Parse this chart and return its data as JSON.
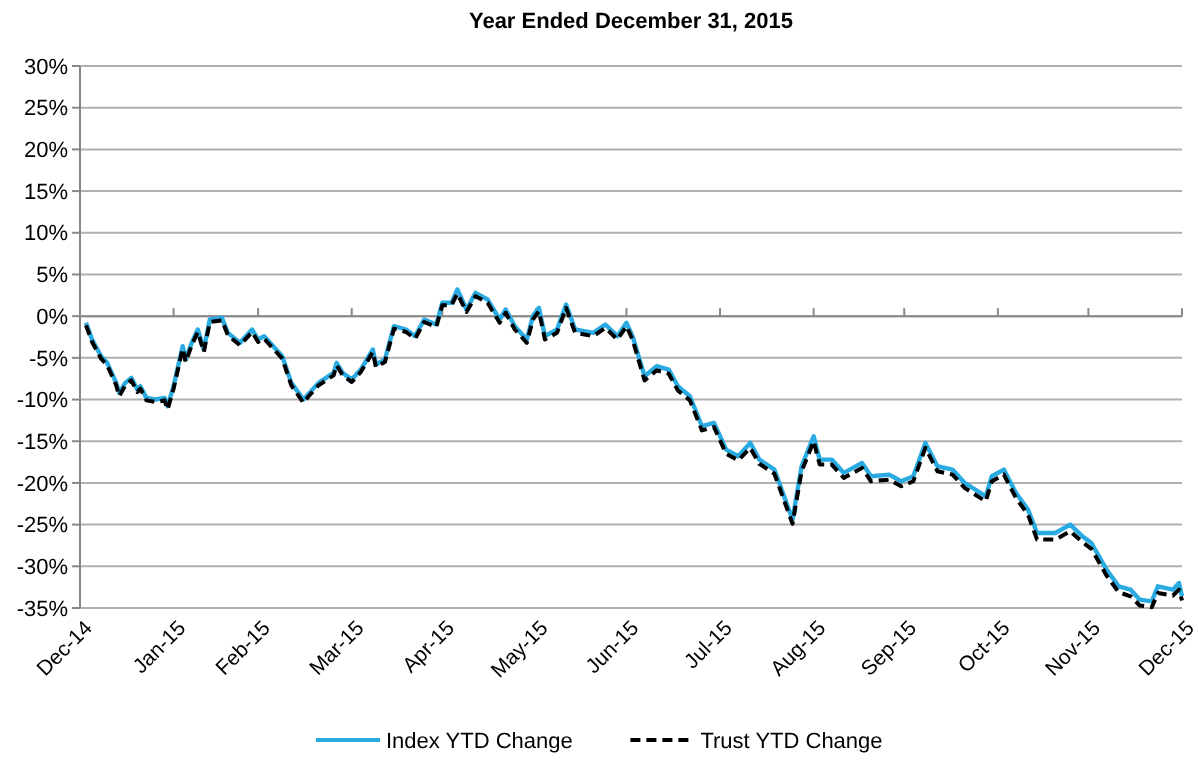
{
  "chart_data": {
    "type": "line",
    "title": "Year Ended December 31, 2015",
    "x": [
      "2015-01-02",
      "2015-01-04",
      "2015-01-07",
      "2015-01-09",
      "2015-01-12",
      "2015-01-13",
      "2015-01-15",
      "2015-01-17",
      "2015-01-19",
      "2015-01-20",
      "2015-01-22",
      "2015-01-25",
      "2015-01-28",
      "2015-01-29",
      "2015-01-31",
      "2015-02-01",
      "2015-02-03",
      "2015-02-04",
      "2015-02-06",
      "2015-02-08",
      "2015-02-10",
      "2015-02-12",
      "2015-02-16",
      "2015-02-18",
      "2015-02-22",
      "2015-02-26",
      "2015-02-28",
      "2015-03-02",
      "2015-03-05",
      "2015-03-08",
      "2015-03-11",
      "2015-03-15",
      "2015-03-17",
      "2015-03-20",
      "2015-03-25",
      "2015-03-26",
      "2015-03-28",
      "2015-03-31",
      "2015-04-03",
      "2015-04-07",
      "2015-04-08",
      "2015-04-11",
      "2015-04-14",
      "2015-04-18",
      "2015-04-21",
      "2015-04-24",
      "2015-04-28",
      "2015-04-30",
      "2015-05-03",
      "2015-05-05",
      "2015-05-08",
      "2015-05-11",
      "2015-05-15",
      "2015-05-19",
      "2015-05-21",
      "2015-05-24",
      "2015-05-28",
      "2015-05-30",
      "2015-06-01",
      "2015-06-03",
      "2015-06-07",
      "2015-06-10",
      "2015-06-13",
      "2015-06-19",
      "2015-06-23",
      "2015-06-27",
      "2015-06-30",
      "2015-07-02",
      "2015-07-06",
      "2015-07-10",
      "2015-07-14",
      "2015-07-17",
      "2015-07-21",
      "2015-07-25",
      "2015-07-29",
      "2015-08-02",
      "2015-08-06",
      "2015-08-10",
      "2015-08-13",
      "2015-08-18",
      "2015-08-24",
      "2015-08-27",
      "2015-08-31",
      "2015-09-02",
      "2015-09-06",
      "2015-09-10",
      "2015-09-16",
      "2015-09-19",
      "2015-09-25",
      "2015-09-29",
      "2015-10-03",
      "2015-10-07",
      "2015-10-11",
      "2015-10-16",
      "2015-10-20",
      "2015-10-27",
      "2015-10-29",
      "2015-11-02",
      "2015-11-06",
      "2015-11-10",
      "2015-11-13",
      "2015-11-19",
      "2015-11-24",
      "2015-11-28",
      "2015-12-01",
      "2015-12-06",
      "2015-12-10",
      "2015-12-14",
      "2015-12-17",
      "2015-12-21",
      "2015-12-23",
      "2015-12-28",
      "2015-12-30",
      "2015-12-31"
    ],
    "series": [
      {
        "name": "Index YTD Change",
        "color": "#29abe2",
        "line_style": "solid",
        "values": [
          -0.8,
          -2.8,
          -4.8,
          -5.6,
          -8,
          -9.2,
          -8,
          -7.4,
          -8.8,
          -8.4,
          -9.8,
          -10,
          -9.8,
          -10.8,
          -8.4,
          -6.8,
          -3.6,
          -5.2,
          -3.2,
          -1.6,
          -4,
          -0.4,
          -0.2,
          -2,
          -3.2,
          -1.6,
          -2.8,
          -2.4,
          -3.6,
          -4.8,
          -8,
          -10,
          -9.2,
          -8,
          -6.8,
          -5.6,
          -6.8,
          -7.6,
          -6.4,
          -4,
          -5.8,
          -5.2,
          -1.2,
          -1.6,
          -2.4,
          -0.4,
          -1,
          1.6,
          1.6,
          3.2,
          0.8,
          2.8,
          2,
          -0.4,
          0.8,
          -1.2,
          -2.8,
          0,
          1,
          -2.4,
          -1.6,
          1.4,
          -1.6,
          -2,
          -1,
          -2.4,
          -0.8,
          -2.4,
          -7.2,
          -6,
          -6.4,
          -8.4,
          -9.6,
          -13.2,
          -12.8,
          -16,
          -16.8,
          -15.2,
          -17.2,
          -18.4,
          -24.4,
          -18,
          -14.4,
          -17.2,
          -17.2,
          -18.8,
          -17.6,
          -19.2,
          -19,
          -19.8,
          -19.2,
          -15.2,
          -18,
          -18.4,
          -20,
          -21.6,
          -19.2,
          -18.4,
          -21.2,
          -23.2,
          -26,
          -26,
          -25,
          -26.4,
          -27.2,
          -30.4,
          -32.4,
          -32.8,
          -34,
          -34.2,
          -32.4,
          -32.8,
          -32,
          -33.6
        ]
      },
      {
        "name": "Trust YTD Change",
        "color": "#000000",
        "line_style": "dashed",
        "values": [
          -1.1,
          -3.1,
          -5.1,
          -5.9,
          -8.3,
          -9.6,
          -8.3,
          -7.7,
          -9.1,
          -8.7,
          -10.1,
          -10.3,
          -10.1,
          -11.2,
          -8.7,
          -7.1,
          -3.9,
          -5.5,
          -3.5,
          -1.9,
          -4.3,
          -0.7,
          -0.5,
          -2.3,
          -3.5,
          -1.9,
          -3.1,
          -2.7,
          -3.9,
          -5.1,
          -8.3,
          -10.4,
          -9.5,
          -8.3,
          -7.1,
          -5.9,
          -7.1,
          -7.9,
          -6.7,
          -4.3,
          -6.1,
          -5.5,
          -1.5,
          -1.9,
          -2.7,
          -0.7,
          -1.3,
          1.3,
          1.3,
          2.7,
          0.5,
          2.4,
          1.6,
          -0.8,
          0.4,
          -1.6,
          -3.2,
          -0.4,
          0.6,
          -2.8,
          -2,
          1,
          -2,
          -2.4,
          -1.4,
          -2.8,
          -1.2,
          -2.8,
          -7.7,
          -6.5,
          -6.9,
          -8.9,
          -10.1,
          -13.7,
          -13.3,
          -16.5,
          -17.3,
          -15.8,
          -17.7,
          -18.9,
          -24.9,
          -18.6,
          -15,
          -17.8,
          -17.8,
          -19.4,
          -18.2,
          -19.8,
          -19.6,
          -20.4,
          -19.8,
          -15.8,
          -18.6,
          -19,
          -20.6,
          -22.2,
          -19.8,
          -19,
          -21.8,
          -23.8,
          -26.8,
          -26.8,
          -25.8,
          -27.1,
          -27.9,
          -31.1,
          -33.1,
          -33.6,
          -34.7,
          -34.9,
          -33.2,
          -33.5,
          -32.8,
          -34.1
        ]
      }
    ],
    "xlim": [
      "2014-12-31",
      "2015-12-31"
    ],
    "xticks": [
      {
        "value": "2014-12-31",
        "label": "Dec-14"
      },
      {
        "value": "2015-01-31",
        "label": "Jan-15"
      },
      {
        "value": "2015-02-28",
        "label": "Feb-15"
      },
      {
        "value": "2015-03-31",
        "label": "Mar-15"
      },
      {
        "value": "2015-04-30",
        "label": "Apr-15"
      },
      {
        "value": "2015-05-31",
        "label": "May-15"
      },
      {
        "value": "2015-06-30",
        "label": "Jun-15"
      },
      {
        "value": "2015-07-31",
        "label": "Jul-15"
      },
      {
        "value": "2015-08-31",
        "label": "Aug-15"
      },
      {
        "value": "2015-09-30",
        "label": "Sep-15"
      },
      {
        "value": "2015-10-31",
        "label": "Oct-15"
      },
      {
        "value": "2015-11-30",
        "label": "Nov-15"
      },
      {
        "value": "2015-12-31",
        "label": "Dec-15"
      }
    ],
    "ylim": [
      -35,
      30
    ],
    "yticks": [
      {
        "value": -35,
        "label": "-35%"
      },
      {
        "value": -30,
        "label": "-30%"
      },
      {
        "value": -25,
        "label": "-25%"
      },
      {
        "value": -20,
        "label": "-20%"
      },
      {
        "value": -15,
        "label": "-15%"
      },
      {
        "value": -10,
        "label": "-10%"
      },
      {
        "value": -5,
        "label": "-5%"
      },
      {
        "value": 0,
        "label": "0%"
      },
      {
        "value": 5,
        "label": "5%"
      },
      {
        "value": 10,
        "label": "10%"
      },
      {
        "value": 15,
        "label": "15%"
      },
      {
        "value": 20,
        "label": "20%"
      },
      {
        "value": 25,
        "label": "25%"
      },
      {
        "value": 30,
        "label": "30%"
      }
    ],
    "grid": "y",
    "legend": "bottom",
    "marker": "none"
  }
}
